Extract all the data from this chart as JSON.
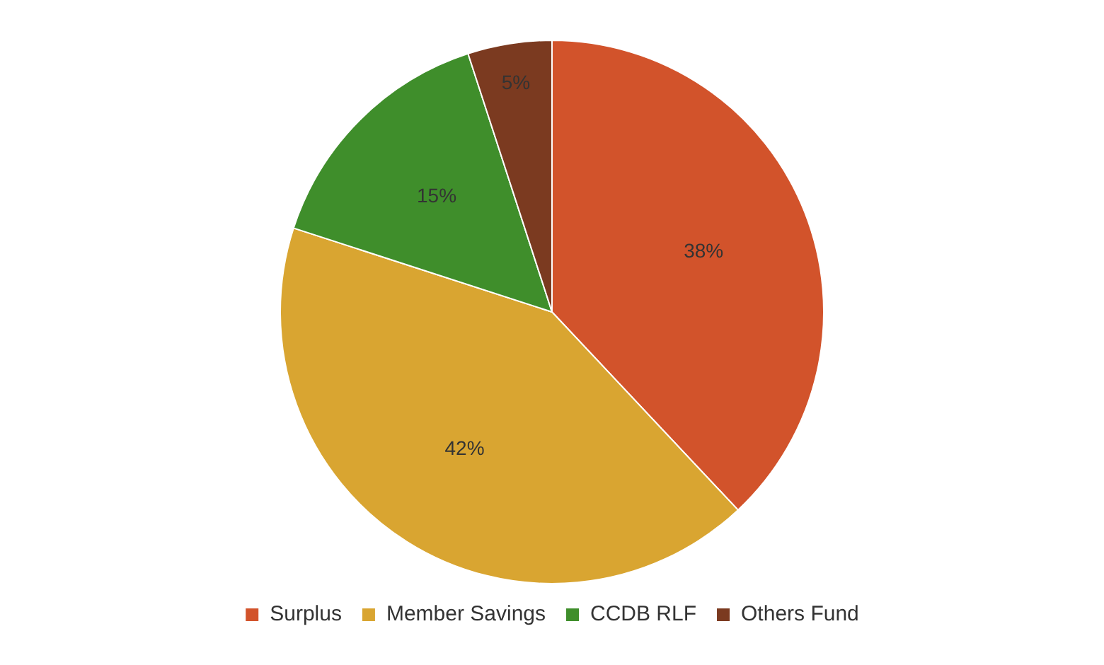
{
  "chart_data": {
    "type": "pie",
    "categories": [
      "Surplus",
      "Member Savings",
      "CCDB RLF",
      "Others Fund"
    ],
    "values": [
      38,
      42,
      15,
      5
    ],
    "colors": [
      "#d2532b",
      "#d9a531",
      "#3f8e2b",
      "#7b3a20"
    ],
    "value_labels": [
      "38%",
      "42%",
      "15%",
      "5%"
    ],
    "legend": "bottom"
  }
}
